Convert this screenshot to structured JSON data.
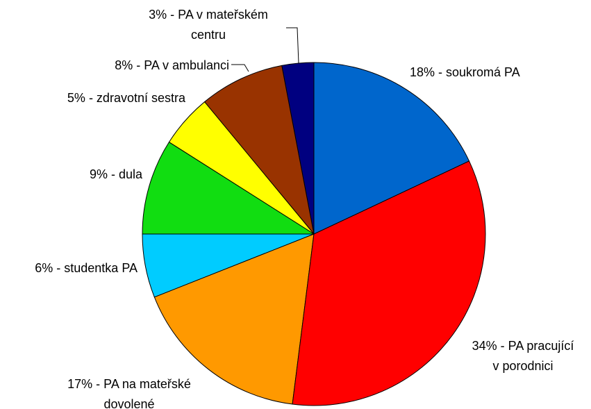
{
  "chart_data": {
    "type": "pie",
    "values": [
      18,
      34,
      17,
      6,
      9,
      5,
      8,
      3
    ],
    "value_labels": [
      "18% - soukromá PA",
      "34% - PA pracující\nv porodnici",
      "17% - PA na mateřské\ndovolené",
      "6% - studentka PA",
      "9% - dula",
      "5% - zdravotní sestra",
      "8% - PA v ambulanci",
      "3% - PA v mateřském\ncentru"
    ],
    "colors": [
      "#0066cc",
      "#ff0000",
      "#ff9900",
      "#00ccff",
      "#11dd11",
      "#ffff00",
      "#993300",
      "#000080"
    ]
  }
}
